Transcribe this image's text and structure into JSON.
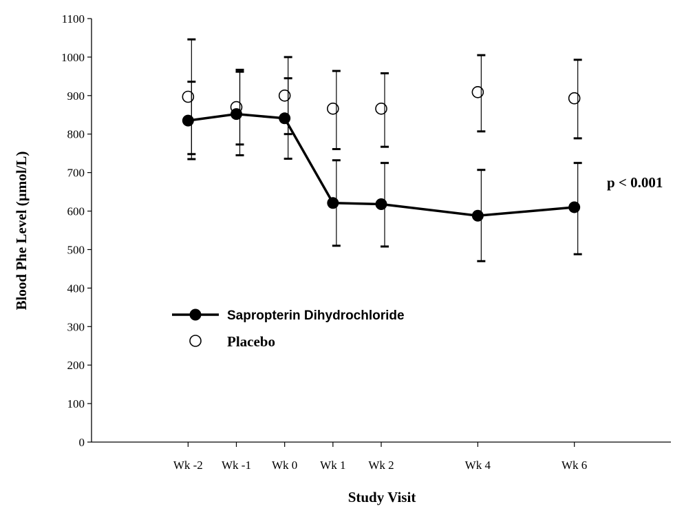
{
  "chart_data": {
    "type": "line",
    "title": "",
    "xlabel": "Study Visit",
    "ylabel": "Blood Phe Level (µmol/L)",
    "ylim": [
      0,
      1100
    ],
    "yticks": [
      0,
      100,
      200,
      300,
      400,
      500,
      600,
      700,
      800,
      900,
      1000,
      1100
    ],
    "xlim": [
      -4,
      8
    ],
    "categories": [
      "Wk -2",
      "Wk -1",
      "Wk 0",
      "Wk 1",
      "Wk 2",
      "Wk 4",
      "Wk 6"
    ],
    "x": [
      -2,
      -1,
      0,
      1,
      2,
      4,
      6
    ],
    "grid": false,
    "legend_position": "lower-left",
    "annotation": "p < 0.001",
    "series": [
      {
        "name": "Sapropterin Dihydrochloride",
        "marker": "filled-circle",
        "line": true,
        "color": "#000000",
        "values": [
          835,
          852,
          841,
          621,
          618,
          588,
          610
        ],
        "upper": [
          936,
          962,
          945,
          732,
          725,
          707,
          725
        ],
        "lower": [
          735,
          745,
          736,
          510,
          508,
          470,
          488
        ]
      },
      {
        "name": "Placebo",
        "marker": "open-circle",
        "line": false,
        "color": "#000000",
        "values": [
          897,
          870,
          900,
          866,
          866,
          909,
          893
        ],
        "upper": [
          1046,
          967,
          1000,
          964,
          958,
          1005,
          993
        ],
        "lower": [
          748,
          773,
          800,
          761,
          767,
          807,
          789
        ]
      }
    ]
  }
}
